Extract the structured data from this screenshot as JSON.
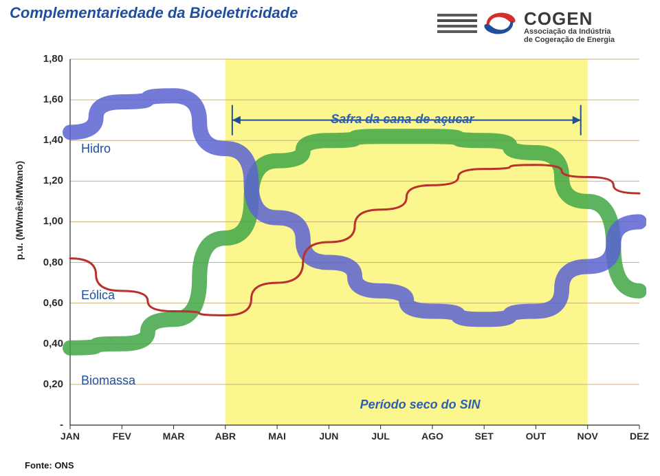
{
  "title": "Complementariedade da Bioeletricidade",
  "logo": {
    "brand": "COGEN",
    "subtitle1": "Associação da Indústria",
    "subtitle2": "de Cogeração de Energia",
    "swirl_top_color": "#d22e2a",
    "swirl_bottom_color": "#1f4e9d",
    "text_color": "#3a3a3a"
  },
  "chart": {
    "type": "line",
    "ylabel": "p.u. (MWmês/MWano)",
    "y_ticks": [
      "-",
      "0,20",
      "0,40",
      "0,60",
      "0,80",
      "1,00",
      "1,20",
      "1,40",
      "1,60",
      "1,80"
    ],
    "y_min": 0.0,
    "y_max": 1.8,
    "x_labels": [
      "JAN",
      "FEV",
      "MAR",
      "ABR",
      "MAI",
      "JUN",
      "JUL",
      "AGO",
      "SET",
      "OUT",
      "NOV",
      "DEZ"
    ],
    "background_color": "#ffffff",
    "gridline_color": "#c9b27a",
    "highlight_band": {
      "start_index": 3,
      "end_index": 10,
      "color": "#faf57a",
      "opacity": 0.85
    },
    "series": {
      "hidro": {
        "label": "Hidro",
        "color": "#5b63d1",
        "opacity": 0.85,
        "width": 22,
        "values": [
          1.44,
          1.59,
          1.62,
          1.36,
          1.02,
          0.8,
          0.66,
          0.56,
          0.52,
          0.56,
          0.78,
          1.0
        ]
      },
      "biomassa": {
        "label": "Biomassa",
        "color": "#41a646",
        "opacity": 0.85,
        "width": 22,
        "values": [
          0.38,
          0.4,
          0.52,
          0.92,
          1.3,
          1.4,
          1.42,
          1.42,
          1.4,
          1.34,
          1.1,
          0.66
        ]
      },
      "eolica": {
        "label": "Eólica",
        "color": "#b9302c",
        "opacity": 1.0,
        "width": 3,
        "values": [
          0.82,
          0.66,
          0.56,
          0.54,
          0.7,
          0.9,
          1.06,
          1.18,
          1.26,
          1.28,
          1.22,
          1.14
        ]
      }
    },
    "annotations": {
      "safra": {
        "text": "Safra da cana-de-açucar",
        "color": "#2b5fb5",
        "bracket_color": "#1f4e9d",
        "y": 1.5
      },
      "periodo": {
        "text": "Período seco do SIN",
        "color": "#2b5fb5",
        "y": 0.1
      }
    },
    "source": "Fonte: ONS"
  }
}
